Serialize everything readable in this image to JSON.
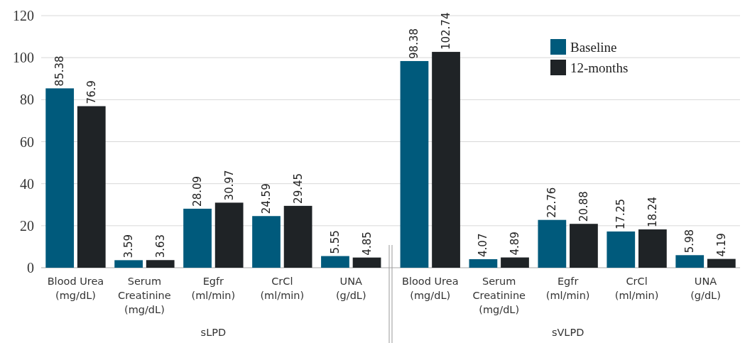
{
  "chart_data": {
    "type": "bar",
    "categories": [
      "Blood Urea\n(mg/dL)",
      "Serum\nCreatinine\n(mg/dL)",
      "Egfr\n(ml/min)",
      "CrCl\n(ml/min)",
      "UNA\n(g/dL)",
      "Blood Urea\n(mg/dL)",
      "Serum\nCreatinine\n(mg/dL)",
      "Egfr\n(ml/min)",
      "CrCl\n(ml/min)",
      "UNA\n(g/dL)"
    ],
    "series": [
      {
        "name": "Baseline",
        "color": "#005a7c",
        "values": [
          85.38,
          3.59,
          28.09,
          24.59,
          5.55,
          98.38,
          4.07,
          22.76,
          17.25,
          5.98
        ]
      },
      {
        "name": "12-months",
        "color": "#1f2326",
        "values": [
          76.9,
          3.63,
          30.97,
          29.45,
          4.85,
          102.74,
          4.89,
          20.88,
          18.24,
          4.19
        ]
      }
    ],
    "ylim": [
      0,
      120
    ],
    "yticks": [
      0,
      20,
      40,
      60,
      80,
      100,
      120
    ],
    "grid": "y",
    "legend": "top right",
    "data_labels": true,
    "annotations": [
      "sLPD",
      "sVLPD"
    ]
  }
}
